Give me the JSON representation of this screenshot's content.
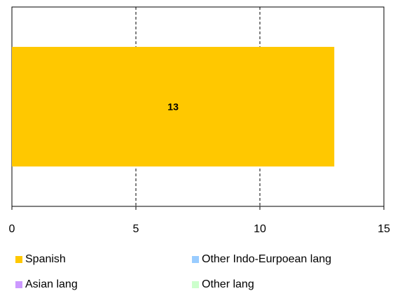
{
  "chart_data": {
    "type": "bar",
    "orientation": "horizontal",
    "categories": [
      ""
    ],
    "series": [
      {
        "name": "Spanish",
        "values": [
          13
        ],
        "color": "#ffc800"
      },
      {
        "name": "Other Indo-Eurpoean lang",
        "values": [
          0
        ],
        "color": "#99ccff"
      },
      {
        "name": "Asian lang",
        "values": [
          0
        ],
        "color": "#cc99ff"
      },
      {
        "name": "Other lang",
        "values": [
          0
        ],
        "color": "#ccffcc"
      }
    ],
    "data_labels": [
      "13"
    ],
    "title": "",
    "xlabel": "",
    "ylabel": "",
    "xlim": [
      0,
      15
    ],
    "xticks": [
      "0",
      "5",
      "10",
      "15"
    ],
    "grid": "vertical dashed",
    "legend_position": "bottom"
  },
  "legend": [
    {
      "label": "Spanish",
      "color": "#ffc800"
    },
    {
      "label": "Other Indo-Eurpoean lang",
      "color": "#99ccff"
    },
    {
      "label": "Asian lang",
      "color": "#cc99ff"
    },
    {
      "label": "Other lang",
      "color": "#ccffcc"
    }
  ]
}
